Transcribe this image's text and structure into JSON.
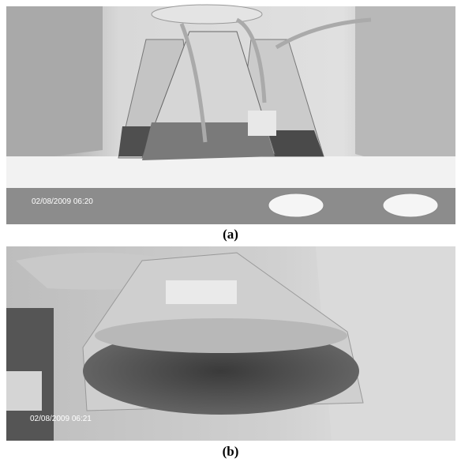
{
  "panels": [
    {
      "timestamp": "02/08/2009 06:20",
      "label": "(a)"
    },
    {
      "timestamp": "02/08/2009 06:21",
      "label": "(b)"
    }
  ]
}
